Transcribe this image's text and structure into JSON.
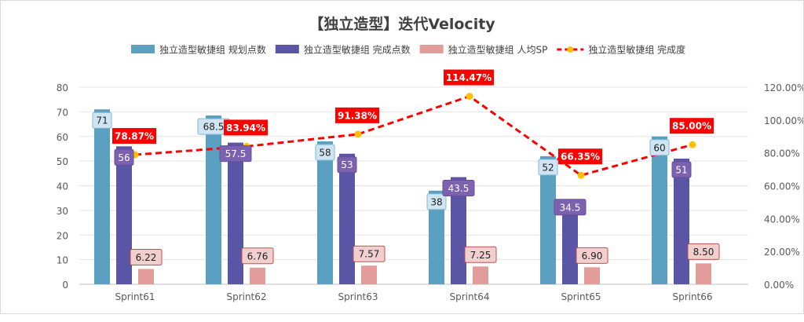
{
  "chart_data": {
    "type": "bar",
    "title": "【独立造型】迭代Velocity",
    "categories": [
      "Sprint61",
      "Sprint62",
      "Sprint63",
      "Sprint64",
      "Sprint65",
      "Sprint66"
    ],
    "series": [
      {
        "name": "独立造型敏捷组 规划点数",
        "kind": "bar",
        "axis": "left",
        "color": "#5b9fc1",
        "values": [
          71,
          68.5,
          58,
          38,
          52,
          60
        ],
        "labels": [
          "71",
          "68.5",
          "58",
          "38",
          "52",
          "60"
        ]
      },
      {
        "name": "独立造型敏捷组 完成点数",
        "kind": "bar",
        "axis": "left",
        "color": "#5b55a5",
        "values": [
          56,
          57.5,
          53,
          43.5,
          34.5,
          51
        ],
        "labels": [
          "56",
          "57.5",
          "53",
          "43.5",
          "34.5",
          "51"
        ]
      },
      {
        "name": "独立造型敏捷组 人均SP",
        "kind": "bar",
        "axis": "left",
        "color": "#e29c9a",
        "values": [
          6.22,
          6.76,
          7.57,
          7.25,
          6.9,
          8.5
        ],
        "labels": [
          "6.22",
          "6.76",
          "7.57",
          "7.25",
          "6.90",
          "8.50"
        ]
      },
      {
        "name": "独立造型敏捷组 完成度",
        "kind": "line",
        "axis": "right",
        "color": "#ff0000",
        "marker_color": "#ffc000",
        "values": [
          78.87,
          83.94,
          91.38,
          114.47,
          66.35,
          85.0
        ],
        "labels": [
          "78.87%",
          "83.94%",
          "91.38%",
          "114.47%",
          "66.35%",
          "85.00%"
        ]
      }
    ],
    "y_left": {
      "min": 0,
      "max": 80,
      "ticks": [
        "0",
        "10",
        "20",
        "30",
        "40",
        "50",
        "60",
        "70",
        "80"
      ]
    },
    "y_right": {
      "min": 0,
      "max": 120,
      "ticks": [
        "0.00%",
        "20.00%",
        "40.00%",
        "60.00%",
        "80.00%",
        "100.00%",
        "120.00%"
      ]
    },
    "grid": true,
    "legend": "top"
  }
}
